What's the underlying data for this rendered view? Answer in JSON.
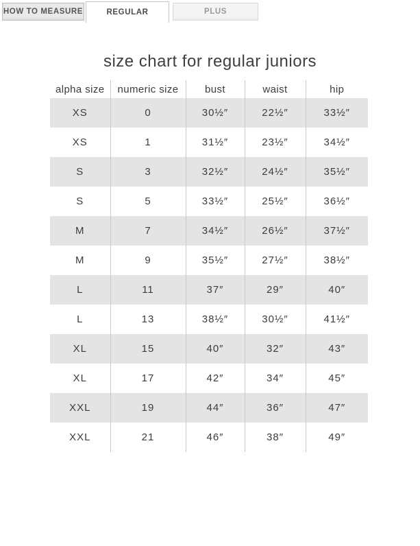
{
  "tabs": [
    {
      "label": "HOW TO MEASURE",
      "active": false
    },
    {
      "label": "REGULAR",
      "active": true
    },
    {
      "label": "PLUS",
      "active": false
    }
  ],
  "title": "size chart for regular juniors",
  "table": {
    "columns": [
      "alpha size",
      "numeric size",
      "bust",
      "waist",
      "hip"
    ],
    "rows": [
      [
        "XS",
        "0",
        "30½″",
        "22½″",
        "33½″"
      ],
      [
        "XS",
        "1",
        "31½″",
        "23½″",
        "34½″"
      ],
      [
        "S",
        "3",
        "32½″",
        "24½″",
        "35½″"
      ],
      [
        "S",
        "5",
        "33½″",
        "25½″",
        "36½″"
      ],
      [
        "M",
        "7",
        "34½″",
        "26½″",
        "37½″"
      ],
      [
        "M",
        "9",
        "35½″",
        "27½″",
        "38½″"
      ],
      [
        "L",
        "11",
        "37″",
        "29″",
        "40″"
      ],
      [
        "L",
        "13",
        "38½″",
        "30½″",
        "41½″"
      ],
      [
        "XL",
        "15",
        "40″",
        "32″",
        "43″"
      ],
      [
        "XL",
        "17",
        "42″",
        "34″",
        "45″"
      ],
      [
        "XXL",
        "19",
        "44″",
        "36″",
        "47″"
      ],
      [
        "XXL",
        "21",
        "46″",
        "38″",
        "49″"
      ]
    ]
  },
  "colors": {
    "striped_row_bg": "#e4e4e4",
    "column_divider": "#c9c9c9",
    "text": "#3c3c3c",
    "tab_inactive_bg": "#e9e9e9",
    "tab_plus_bg": "#f4f4f4",
    "tab_active_bg": "#ffffff",
    "tab_border": "#c6c6c6",
    "tab_plus_text": "#989898"
  }
}
